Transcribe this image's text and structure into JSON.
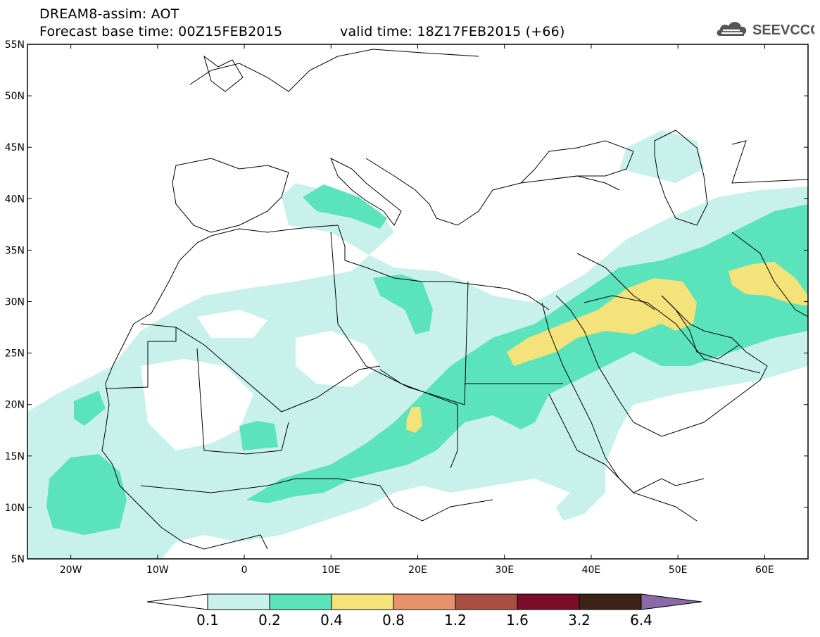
{
  "header": {
    "title": "DREAM8-assim: AOT",
    "base_time_label": "Forecast base time:",
    "base_time": "00Z15FEB2015",
    "valid_time_label": "valid time:",
    "valid_time": "18Z17FEB2015 (+66)"
  },
  "logo": {
    "text": "SEEVCCC",
    "icon": "cloud-icon"
  },
  "map": {
    "lon_range": [
      -25,
      65
    ],
    "lat_range": [
      5,
      55
    ],
    "lat_ticks": [
      "55N",
      "50N",
      "45N",
      "40N",
      "35N",
      "30N",
      "25N",
      "20N",
      "15N",
      "10N",
      "5N"
    ],
    "lon_ticks": [
      "20W",
      "10W",
      "0",
      "10E",
      "20E",
      "30E",
      "40E",
      "50E",
      "60E"
    ]
  },
  "legend": {
    "levels": [
      "0.1",
      "0.2",
      "0.4",
      "0.8",
      "1.2",
      "1.6",
      "3.2",
      "6.4"
    ],
    "colors": [
      "#ffffff",
      "#c8f1ec",
      "#5be3bc",
      "#f4e27a",
      "#e8926b",
      "#a84e43",
      "#7b0d2a",
      "#3b2417",
      "#8a6aa6"
    ]
  }
}
